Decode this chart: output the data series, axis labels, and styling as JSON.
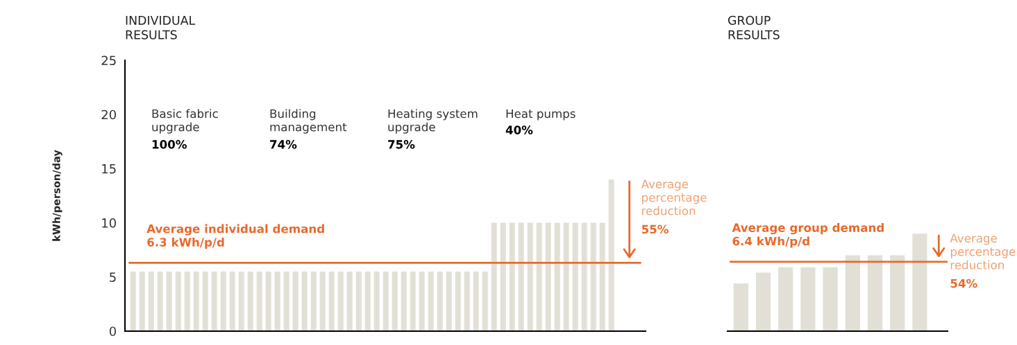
{
  "chart_data": [
    {
      "type": "bar",
      "title": "INDIVIDUAL\nRESULTS",
      "ylabel": "kWh/person/day",
      "categories": [
        null,
        null,
        null,
        null,
        null,
        null,
        null,
        null,
        null,
        null,
        null,
        null,
        null,
        null,
        null,
        null,
        null,
        null,
        null,
        null,
        null,
        null,
        null,
        null,
        null,
        null,
        null,
        null,
        null,
        null,
        null,
        null,
        null,
        null,
        null,
        null,
        null,
        null,
        null,
        null,
        null,
        null,
        null,
        null,
        null,
        null,
        null,
        null,
        null,
        null,
        null,
        null,
        null,
        null
      ],
      "values": [
        5.5,
        5.5,
        5.5,
        5.5,
        5.5,
        5.5,
        5.5,
        5.5,
        5.5,
        5.5,
        5.5,
        5.5,
        5.5,
        5.5,
        5.5,
        5.5,
        5.5,
        5.5,
        5.5,
        5.5,
        5.5,
        5.5,
        5.5,
        5.5,
        5.5,
        5.5,
        5.5,
        5.5,
        5.5,
        5.5,
        5.5,
        5.5,
        5.5,
        5.5,
        5.5,
        5.5,
        5.5,
        5.5,
        5.5,
        5.5,
        10,
        10,
        10,
        10,
        10,
        10,
        10,
        10,
        10,
        10,
        10,
        10,
        10,
        14
      ],
      "color": "#e2e0d6",
      "ylim": [
        0,
        25
      ],
      "yticks": [
        0,
        5,
        10,
        15,
        20,
        25
      ],
      "grid": false,
      "legend": false,
      "ref_lines": [
        {
          "axis": "y",
          "value": 6.3,
          "label": "Average individual demand\n6.3 kWh/p/d",
          "color": "#e8692c"
        }
      ],
      "annotations": [
        "Basic fabric\nupgrade\n100%",
        "Building\nmanagement\n74%",
        "Heating system\nupgrade\n75%",
        "Heat pumps\n40%",
        "Average\npercentage\nreduction\n55%"
      ]
    },
    {
      "type": "bar",
      "title": "GROUP\nRESULTS",
      "categories": [
        null,
        null,
        null,
        null,
        null,
        null,
        null,
        null,
        null
      ],
      "values": [
        4.4,
        5.4,
        5.9,
        5.9,
        5.9,
        7,
        7,
        7,
        9
      ],
      "color": "#e2e0d6",
      "ylim": [
        0,
        25
      ],
      "grid": false,
      "legend": false,
      "ref_lines": [
        {
          "axis": "y",
          "value": 6.4,
          "label": "Average group demand\n6.4 kWh/p/d",
          "color": "#e8692c"
        }
      ],
      "annotations": [
        "Average\npercentage\nreduction\n54%"
      ]
    }
  ]
}
